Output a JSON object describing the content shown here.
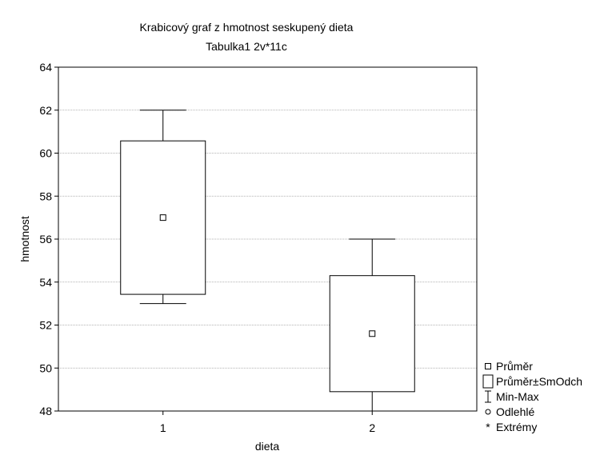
{
  "chart_data": {
    "type": "box",
    "title": "Krabicový graf z hmotnost seskupený dieta",
    "subtitle": "Tabulka1 2v*11c",
    "xlabel": "dieta",
    "ylabel": "hmotnost",
    "ylim": [
      48,
      64
    ],
    "yticks": [
      48,
      50,
      52,
      54,
      56,
      58,
      60,
      62,
      64
    ],
    "categories": [
      "1",
      "2"
    ],
    "boxes": [
      {
        "category": "1",
        "mean": 57.0,
        "box_low": 53.43,
        "box_high": 60.57,
        "min": 53.0,
        "max": 62.0
      },
      {
        "category": "2",
        "mean": 51.6,
        "box_low": 48.9,
        "box_high": 54.3,
        "min": 48.0,
        "max": 56.0
      }
    ],
    "grid": true,
    "legend": {
      "position": "right-bottom",
      "entries": [
        {
          "symbol": "mean-square",
          "label": "Průměr"
        },
        {
          "symbol": "box",
          "label": "Průměr±SmOdch"
        },
        {
          "symbol": "whisker",
          "label": "Min-Max"
        },
        {
          "symbol": "circle",
          "label": "Odlehlé"
        },
        {
          "symbol": "asterisk",
          "label": "Extrémy"
        }
      ]
    }
  }
}
